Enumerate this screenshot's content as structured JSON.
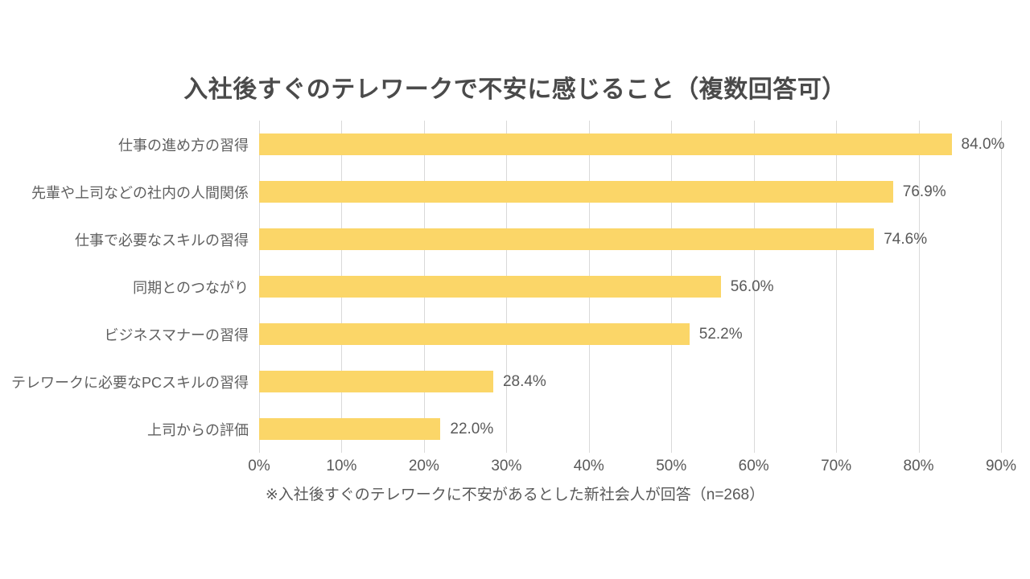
{
  "chart_data": {
    "type": "bar",
    "orientation": "horizontal",
    "title": "入社後すぐのテレワークで不安に感じること（複数回答可）",
    "categories": [
      "仕事の進め方の習得",
      "先輩や上司などの社内の人間関係",
      "仕事で必要なスキルの習得",
      "同期とのつながり",
      "ビジネスマナーの習得",
      "テレワークに必要なPCスキルの習得",
      "上司からの評価"
    ],
    "values": [
      84.0,
      76.9,
      74.6,
      56.0,
      52.2,
      28.4,
      22.0
    ],
    "value_labels": [
      "84.0%",
      "76.9%",
      "74.6%",
      "56.0%",
      "52.2%",
      "28.4%",
      "22.0%"
    ],
    "x_tick_labels": [
      "0%",
      "10%",
      "20%",
      "30%",
      "40%",
      "50%",
      "60%",
      "70%",
      "80%",
      "90%"
    ],
    "xlim": [
      0,
      90
    ],
    "xlabel": "",
    "ylabel": "",
    "grid": "vertical-only",
    "legend": "none",
    "footnote": "※入社後すぐのテレワークに不安があるとした新社会人が回答（n=268）",
    "colors": {
      "bar": "#FBD668",
      "grid": "#D9D9D9",
      "title_text": "#4A4A4A",
      "label_text": "#5F5F5F",
      "value_text": "#595959",
      "background": "#FFFFFF"
    }
  }
}
